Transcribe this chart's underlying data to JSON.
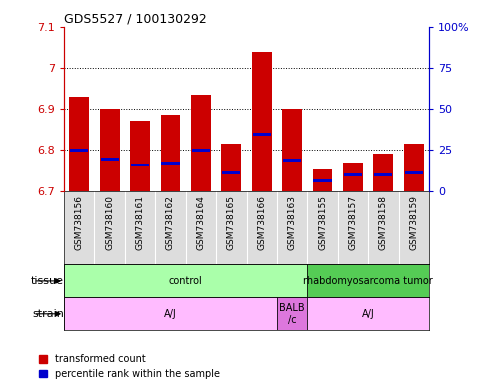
{
  "title": "GDS5527 / 100130292",
  "samples": [
    "GSM738156",
    "GSM738160",
    "GSM738161",
    "GSM738162",
    "GSM738164",
    "GSM738165",
    "GSM738166",
    "GSM738163",
    "GSM738155",
    "GSM738157",
    "GSM738158",
    "GSM738159"
  ],
  "red_values": [
    6.93,
    6.9,
    6.87,
    6.885,
    6.935,
    6.815,
    7.04,
    6.9,
    6.755,
    6.77,
    6.79,
    6.815
  ],
  "blue_values": [
    6.8,
    6.778,
    6.764,
    6.768,
    6.8,
    6.745,
    6.838,
    6.776,
    6.726,
    6.74,
    6.742,
    6.745
  ],
  "ymin": 6.7,
  "ymax": 7.1,
  "y2min": 0,
  "y2max": 100,
  "yticks": [
    6.7,
    6.8,
    6.9,
    7.0,
    7.1
  ],
  "y2ticks": [
    0,
    25,
    50,
    75,
    100
  ],
  "ytick_labels": [
    "6.7",
    "6.8",
    "6.9",
    "7",
    "7.1"
  ],
  "y2tick_labels": [
    "0",
    "25",
    "50",
    "75",
    "100%"
  ],
  "bar_color": "#cc0000",
  "blue_color": "#0000cc",
  "tissue_groups": [
    {
      "label": "control",
      "start": 0,
      "end": 8,
      "color": "#aaffaa"
    },
    {
      "label": "rhabdomyosarcoma tumor",
      "start": 8,
      "end": 12,
      "color": "#55cc55"
    }
  ],
  "strain_groups": [
    {
      "label": "A/J",
      "start": 0,
      "end": 7,
      "color": "#ffbbff"
    },
    {
      "label": "BALB\n/c",
      "start": 7,
      "end": 8,
      "color": "#dd77dd"
    },
    {
      "label": "A/J",
      "start": 8,
      "end": 12,
      "color": "#ffbbff"
    }
  ],
  "legend_items": [
    {
      "label": "transformed count",
      "color": "#cc0000"
    },
    {
      "label": "percentile rank within the sample",
      "color": "#0000cc"
    }
  ],
  "tissue_label": "tissue",
  "strain_label": "strain",
  "axis_color_left": "#cc0000",
  "axis_color_right": "#0000cc",
  "bar_width": 0.65,
  "grid_color": "black",
  "grid_style": "dotted",
  "sample_bg_color": "#dddddd"
}
